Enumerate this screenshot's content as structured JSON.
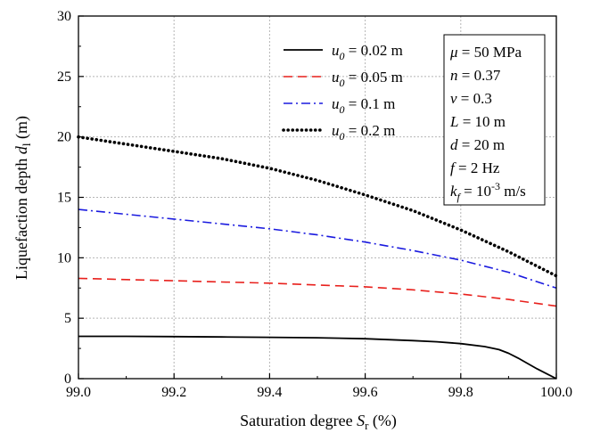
{
  "chart_data": {
    "type": "line",
    "title": "",
    "xlabel": {
      "pre": "Saturation degree ",
      "var": "S",
      "sub": "r",
      "post": " (%)"
    },
    "ylabel": {
      "pre": "Liquefaction depth ",
      "var": "d",
      "sub": "l",
      "post": " (m)"
    },
    "xlim": [
      99.0,
      100.0
    ],
    "ylim": [
      0,
      30
    ],
    "xticks": [
      "99.0",
      "99.2",
      "99.4",
      "99.6",
      "99.8",
      "100.0"
    ],
    "yticks": [
      "0",
      "5",
      "10",
      "15",
      "20",
      "25",
      "30"
    ],
    "grid": true,
    "legend_position": "top-right",
    "series": [
      {
        "name": "u0 = 0.02 m",
        "label": {
          "var": "u",
          "sub": "0",
          "text": " = 0.02 m"
        },
        "color": "#000000",
        "dash": "solid",
        "x": [
          99.0,
          99.1,
          99.2,
          99.3,
          99.4,
          99.5,
          99.6,
          99.7,
          99.75,
          99.8,
          99.85,
          99.88,
          99.9,
          99.92,
          99.94,
          99.96,
          99.98,
          100.0
        ],
        "y": [
          3.5,
          3.5,
          3.48,
          3.45,
          3.42,
          3.38,
          3.3,
          3.15,
          3.05,
          2.9,
          2.65,
          2.4,
          2.1,
          1.7,
          1.25,
          0.8,
          0.4,
          0.0
        ]
      },
      {
        "name": "u0 = 0.05 m",
        "label": {
          "var": "u",
          "sub": "0",
          "text": " = 0.05 m"
        },
        "color": "#e8201c",
        "dash": "dash",
        "x": [
          99.0,
          99.1,
          99.2,
          99.3,
          99.4,
          99.5,
          99.6,
          99.7,
          99.8,
          99.9,
          100.0
        ],
        "y": [
          8.3,
          8.2,
          8.1,
          8.0,
          7.9,
          7.75,
          7.6,
          7.35,
          7.0,
          6.55,
          6.0
        ]
      },
      {
        "name": "u0 = 0.1 m",
        "label": {
          "var": "u",
          "sub": "0",
          "text": " = 0.1 m"
        },
        "color": "#1a1adf",
        "dash": "dashdot",
        "x": [
          99.0,
          99.1,
          99.2,
          99.3,
          99.4,
          99.5,
          99.6,
          99.7,
          99.8,
          99.9,
          100.0
        ],
        "y": [
          14.0,
          13.6,
          13.2,
          12.8,
          12.4,
          11.9,
          11.3,
          10.6,
          9.8,
          8.8,
          7.5
        ]
      },
      {
        "name": "u0 = 0.2 m",
        "label": {
          "var": "u",
          "sub": "0",
          "text": " = 0.2 m"
        },
        "color": "#000000",
        "dash": "dot",
        "x": [
          99.0,
          99.1,
          99.2,
          99.3,
          99.4,
          99.5,
          99.6,
          99.7,
          99.8,
          99.9,
          100.0
        ],
        "y": [
          20.0,
          19.4,
          18.8,
          18.2,
          17.4,
          16.4,
          15.2,
          13.9,
          12.3,
          10.5,
          8.5
        ]
      }
    ],
    "parameters": [
      {
        "var": "μ",
        "sub": "",
        "sup": "",
        "text": " = 50 MPa"
      },
      {
        "var": "n",
        "sub": "",
        "sup": "",
        "text": " = 0.37"
      },
      {
        "var": "v",
        "sub": "",
        "sup": "",
        "text": " = 0.3"
      },
      {
        "var": "L",
        "sub": "",
        "sup": "",
        "text": " = 10 m"
      },
      {
        "var": "d",
        "sub": "",
        "sup": "",
        "text": " = 20 m"
      },
      {
        "var": "f",
        "sub": "",
        "sup": "",
        "text": " = 2 Hz"
      },
      {
        "var": "k",
        "sub": "f",
        "sup": "-3",
        "text": " = 10",
        "unit": " m/s"
      }
    ]
  }
}
